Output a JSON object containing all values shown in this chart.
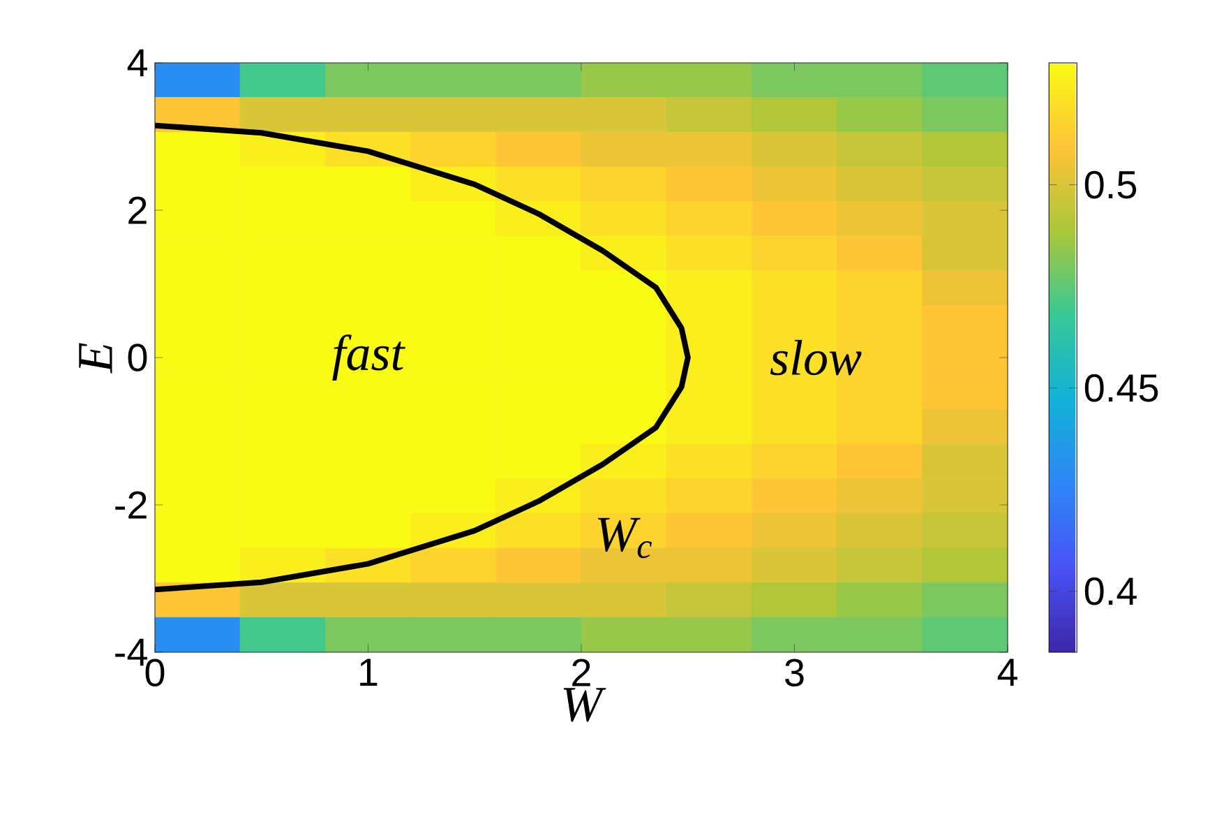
{
  "chart_data": {
    "type": "heatmap",
    "xlabel": "W",
    "ylabel": "E",
    "cells": [
      [
        0.43,
        0.47,
        0.48,
        0.48,
        0.48,
        0.485,
        0.485,
        0.48,
        0.48,
        0.475
      ],
      [
        0.51,
        0.5,
        0.5,
        0.5,
        0.5,
        0.5,
        0.495,
        0.49,
        0.485,
        0.48
      ],
      [
        0.53,
        0.525,
        0.52,
        0.515,
        0.51,
        0.505,
        0.505,
        0.5,
        0.495,
        0.49
      ],
      [
        0.53,
        0.53,
        0.53,
        0.525,
        0.52,
        0.515,
        0.51,
        0.505,
        0.5,
        0.495
      ],
      [
        0.53,
        0.53,
        0.53,
        0.53,
        0.525,
        0.52,
        0.515,
        0.51,
        0.505,
        0.5
      ],
      [
        0.53,
        0.53,
        0.53,
        0.53,
        0.53,
        0.525,
        0.52,
        0.515,
        0.51,
        0.5
      ],
      [
        0.53,
        0.53,
        0.53,
        0.53,
        0.53,
        0.53,
        0.525,
        0.52,
        0.515,
        0.505
      ],
      [
        0.53,
        0.53,
        0.53,
        0.53,
        0.53,
        0.53,
        0.525,
        0.52,
        0.515,
        0.51
      ],
      [
        0.53,
        0.53,
        0.53,
        0.53,
        0.53,
        0.53,
        0.525,
        0.52,
        0.515,
        0.51
      ],
      [
        0.53,
        0.53,
        0.53,
        0.53,
        0.53,
        0.53,
        0.525,
        0.52,
        0.515,
        0.51
      ],
      [
        0.53,
        0.53,
        0.53,
        0.53,
        0.53,
        0.53,
        0.525,
        0.52,
        0.515,
        0.505
      ],
      [
        0.53,
        0.53,
        0.53,
        0.53,
        0.53,
        0.525,
        0.52,
        0.515,
        0.51,
        0.5
      ],
      [
        0.53,
        0.53,
        0.53,
        0.53,
        0.525,
        0.52,
        0.515,
        0.51,
        0.505,
        0.5
      ],
      [
        0.53,
        0.53,
        0.53,
        0.525,
        0.52,
        0.515,
        0.51,
        0.505,
        0.5,
        0.495
      ],
      [
        0.53,
        0.525,
        0.52,
        0.515,
        0.51,
        0.505,
        0.505,
        0.5,
        0.495,
        0.49
      ],
      [
        0.51,
        0.5,
        0.5,
        0.5,
        0.5,
        0.5,
        0.495,
        0.49,
        0.485,
        0.48
      ],
      [
        0.43,
        0.47,
        0.48,
        0.48,
        0.48,
        0.485,
        0.485,
        0.48,
        0.48,
        0.475
      ]
    ],
    "clim": [
      0.385,
      0.53
    ],
    "cticks": [
      0.4,
      0.45,
      0.5
    ],
    "xlim": [
      0,
      4
    ],
    "ylim": [
      -4,
      4
    ],
    "xticks": [
      0,
      1,
      2,
      3,
      4
    ],
    "yticks": [
      -4,
      -2,
      0,
      2,
      4
    ],
    "series": [
      {
        "type": "line",
        "color": "#000000",
        "x": [
          0,
          0.5,
          1,
          1.5,
          1.8,
          2.1,
          2.35,
          2.47,
          2.5,
          2.47,
          2.35,
          2.1,
          1.8,
          1.5,
          1,
          0.5,
          0
        ],
        "values": [
          3.15,
          3.05,
          2.8,
          2.35,
          1.95,
          1.45,
          0.95,
          0.4,
          0,
          -0.4,
          -0.95,
          -1.45,
          -1.95,
          -2.35,
          -2.8,
          -3.05,
          -3.15
        ]
      }
    ],
    "annotations": [
      "fast",
      "slow",
      "W$_{c}$"
    ]
  }
}
